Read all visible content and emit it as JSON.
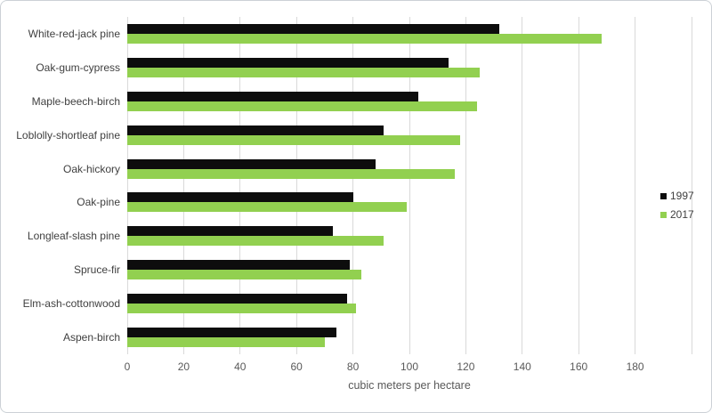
{
  "chart_data": {
    "type": "bar",
    "orientation": "horizontal",
    "title": "",
    "xlabel": "cubic meters per hectare",
    "ylabel": "",
    "xlim": [
      0,
      200
    ],
    "xticks": [
      0,
      20,
      40,
      60,
      80,
      100,
      120,
      140,
      160,
      180
    ],
    "grid": true,
    "legend_position": "right",
    "gridline_color": "#d9d9d9",
    "categories": [
      "White-red-jack pine",
      "Oak-gum-cypress",
      "Maple-beech-birch",
      "Loblolly-shortleaf pine",
      "Oak-hickory",
      "Oak-pine",
      "Longleaf-slash pine",
      "Spruce-fir",
      "Elm-ash-cottonwood",
      "Aspen-birch"
    ],
    "series": [
      {
        "name": "1997",
        "color": "#0d0d0d",
        "values": [
          132,
          114,
          103,
          91,
          88,
          80,
          73,
          79,
          78,
          74
        ]
      },
      {
        "name": "2017",
        "color": "#92d050",
        "values": [
          168,
          125,
          124,
          118,
          116,
          99,
          91,
          83,
          81,
          70
        ]
      }
    ]
  }
}
